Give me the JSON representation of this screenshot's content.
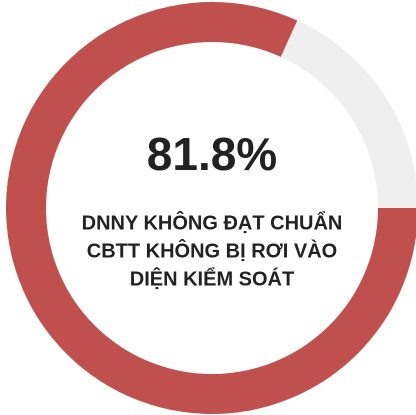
{
  "chart_data": {
    "type": "donut",
    "values": [
      81.8,
      18.2
    ],
    "value_labels": [
      "81.8%",
      null
    ],
    "colors": [
      "#c0504d",
      "#efefef"
    ],
    "label_lines": [
      "DNNY KHÔNG ĐẠT CHUẨN",
      "CBTT KHÔNG BỊ RƠI VÀO",
      "DIỆN KIỂM SOÁT"
    ]
  }
}
